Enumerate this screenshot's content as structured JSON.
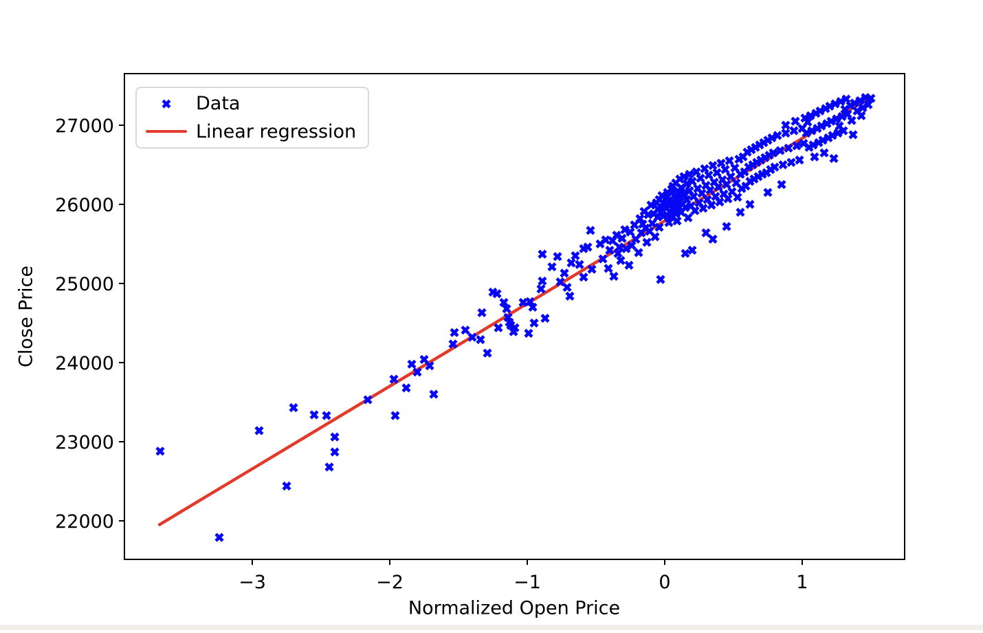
{
  "window": {
    "background": "#ffffff",
    "bottom_strip_color": "#f1ede9"
  },
  "chart_data": {
    "type": "scatter",
    "title": "",
    "xlabel": "Normalized Open Price",
    "ylabel": "Close Price",
    "xlim": [
      -3.93,
      1.745
    ],
    "ylim": [
      21513,
      27652
    ],
    "grid": false,
    "x_tick_values": [
      -3,
      -2,
      -1,
      0,
      1
    ],
    "x_tick_labels": [
      "−3",
      "−2",
      "−1",
      "0",
      "1"
    ],
    "y_tick_values": [
      22000,
      23000,
      24000,
      25000,
      26000,
      27000
    ],
    "y_tick_labels": [
      "22000",
      "23000",
      "24000",
      "25000",
      "26000",
      "27000"
    ],
    "marker_color": "#0707f5",
    "line_color": "#e23b2c",
    "axis_color": "#000000",
    "legend": {
      "position": "upper-left",
      "entries": [
        {
          "label": "Data",
          "type": "marker",
          "color": "#0707f5"
        },
        {
          "label": "Linear regression",
          "type": "line",
          "color": "#e23b2c"
        }
      ]
    },
    "series": [
      {
        "name": "Data",
        "type": "scatter"
      },
      {
        "name": "Linear regression",
        "type": "line"
      }
    ],
    "regression_line": {
      "x": [
        -3.675,
        1.49
      ],
      "y": [
        21952,
        27346
      ]
    },
    "points": [
      [
        -3.67,
        22880
      ],
      [
        -3.24,
        21790
      ],
      [
        -2.95,
        23140
      ],
      [
        -2.75,
        22440
      ],
      [
        -2.7,
        23430
      ],
      [
        -2.55,
        23340
      ],
      [
        -2.46,
        23330
      ],
      [
        -2.44,
        22680
      ],
      [
        -2.4,
        23060
      ],
      [
        -2.4,
        22870
      ],
      [
        -2.16,
        23530
      ],
      [
        -1.97,
        23790
      ],
      [
        -1.96,
        23330
      ],
      [
        -1.88,
        23680
      ],
      [
        -1.84,
        23980
      ],
      [
        -1.8,
        23880
      ],
      [
        -1.75,
        24040
      ],
      [
        -1.71,
        23960
      ],
      [
        -1.68,
        23600
      ],
      [
        -1.54,
        24235
      ],
      [
        -1.53,
        24380
      ],
      [
        -1.45,
        24410
      ],
      [
        -1.4,
        24320
      ],
      [
        -1.34,
        24290
      ],
      [
        -1.33,
        24630
      ],
      [
        -1.29,
        24120
      ],
      [
        -1.25,
        24890
      ],
      [
        -1.22,
        24870
      ],
      [
        -1.21,
        24440
      ],
      [
        -1.17,
        24760
      ],
      [
        -1.15,
        24680
      ],
      [
        -1.14,
        24570
      ],
      [
        -1.13,
        24510
      ],
      [
        -1.12,
        24470
      ],
      [
        -1.1,
        24390
      ],
      [
        -1.09,
        24440
      ],
      [
        -1.03,
        24760
      ],
      [
        -0.99,
        24370
      ],
      [
        -0.98,
        24770
      ],
      [
        -0.96,
        24700
      ],
      [
        -0.95,
        24500
      ],
      [
        -0.9,
        24930
      ],
      [
        -0.89,
        25370
      ],
      [
        -0.89,
        25030
      ],
      [
        -0.87,
        24560
      ],
      [
        -0.82,
        25210
      ],
      [
        -0.78,
        25340
      ],
      [
        -0.76,
        25020
      ],
      [
        -0.73,
        25130
      ],
      [
        -0.71,
        24950
      ],
      [
        -0.69,
        24840
      ],
      [
        -0.68,
        25260
      ],
      [
        -0.65,
        25350
      ],
      [
        -0.62,
        25240
      ],
      [
        -0.59,
        25440
      ],
      [
        -0.59,
        25080
      ],
      [
        -0.56,
        25460
      ],
      [
        -0.54,
        25670
      ],
      [
        -0.53,
        25180
      ],
      [
        -0.47,
        25500
      ],
      [
        -0.45,
        25310
      ],
      [
        -0.43,
        25550
      ],
      [
        -0.41,
        25190
      ],
      [
        -0.4,
        25420
      ],
      [
        -0.38,
        25540
      ],
      [
        -0.37,
        25090
      ],
      [
        -0.35,
        25610
      ],
      [
        -0.34,
        25380
      ],
      [
        -0.33,
        25460
      ],
      [
        -0.32,
        25290
      ],
      [
        -0.31,
        25570
      ],
      [
        -0.29,
        25680
      ],
      [
        -0.28,
        25440
      ],
      [
        -0.26,
        25230
      ],
      [
        -0.25,
        25650
      ],
      [
        -0.24,
        25480
      ],
      [
        -0.22,
        25740
      ],
      [
        -0.21,
        25560
      ],
      [
        -0.19,
        25390
      ],
      [
        -0.18,
        25820
      ],
      [
        -0.17,
        25640
      ],
      [
        -0.16,
        25750
      ],
      [
        -0.15,
        25910
      ],
      [
        -0.14,
        25700
      ],
      [
        -0.13,
        25520
      ],
      [
        -0.12,
        25870
      ],
      [
        -0.11,
        25660
      ],
      [
        -0.1,
        25990
      ],
      [
        -0.09,
        25760
      ],
      [
        -0.08,
        25880
      ],
      [
        -0.07,
        25590
      ],
      [
        -0.06,
        26020
      ],
      [
        -0.05,
        25940
      ],
      [
        -0.05,
        25840
      ],
      [
        -0.04,
        25710
      ],
      [
        -0.04,
        26060
      ],
      [
        -0.03,
        25900
      ],
      [
        -0.03,
        25050
      ],
      [
        -0.02,
        25960
      ],
      [
        -0.02,
        26110
      ],
      [
        -0.01,
        25850
      ],
      [
        -0.01,
        26010
      ],
      [
        0.01,
        25950
      ],
      [
        0.01,
        26080
      ],
      [
        0.02,
        25860
      ],
      [
        0.02,
        26150
      ],
      [
        0.03,
        25990
      ],
      [
        0.03,
        25770
      ],
      [
        0.04,
        26060
      ],
      [
        0.04,
        25910
      ],
      [
        0.05,
        26190
      ],
      [
        0.05,
        25840
      ],
      [
        0.06,
        26020
      ],
      [
        0.06,
        26230
      ],
      [
        0.07,
        25950
      ],
      [
        0.07,
        26110
      ],
      [
        0.08,
        25880
      ],
      [
        0.08,
        26270
      ],
      [
        0.09,
        26030
      ],
      [
        0.09,
        25790
      ],
      [
        0.1,
        26160
      ],
      [
        0.1,
        25970
      ],
      [
        0.11,
        26320
      ],
      [
        0.11,
        26090
      ],
      [
        0.12,
        25900
      ],
      [
        0.12,
        26210
      ],
      [
        0.13,
        26000
      ],
      [
        0.14,
        26350
      ],
      [
        0.14,
        26130
      ],
      [
        0.15,
        25960
      ],
      [
        0.15,
        25380
      ],
      [
        0.16,
        26260
      ],
      [
        0.16,
        26060
      ],
      [
        0.17,
        25830
      ],
      [
        0.18,
        26380
      ],
      [
        0.18,
        26170
      ],
      [
        0.19,
        25980
      ],
      [
        0.2,
        26290
      ],
      [
        0.2,
        25420
      ],
      [
        0.21,
        26100
      ],
      [
        0.22,
        25920
      ],
      [
        0.23,
        26410
      ],
      [
        0.24,
        26200
      ],
      [
        0.25,
        26020
      ],
      [
        0.26,
        26330
      ],
      [
        0.27,
        26140
      ],
      [
        0.28,
        25950
      ],
      [
        0.29,
        26450
      ],
      [
        0.3,
        26240
      ],
      [
        0.3,
        25640
      ],
      [
        0.31,
        26060
      ],
      [
        0.32,
        26370
      ],
      [
        0.33,
        26180
      ],
      [
        0.34,
        25990
      ],
      [
        0.35,
        26490
      ],
      [
        0.35,
        25560
      ],
      [
        0.36,
        26280
      ],
      [
        0.37,
        26100
      ],
      [
        0.38,
        26400
      ],
      [
        0.39,
        26220
      ],
      [
        0.4,
        26030
      ],
      [
        0.41,
        26520
      ],
      [
        0.42,
        26310
      ],
      [
        0.43,
        26130
      ],
      [
        0.44,
        26440
      ],
      [
        0.45,
        26250
      ],
      [
        0.45,
        25720
      ],
      [
        0.46,
        26070
      ],
      [
        0.47,
        26550
      ],
      [
        0.48,
        26350
      ],
      [
        0.49,
        26160
      ],
      [
        0.51,
        26460
      ],
      [
        0.52,
        26270
      ],
      [
        0.53,
        26090
      ],
      [
        0.54,
        26570
      ],
      [
        0.55,
        26380
      ],
      [
        0.55,
        25900
      ],
      [
        0.56,
        26200
      ],
      [
        0.57,
        26600
      ],
      [
        0.58,
        26410
      ],
      [
        0.59,
        26230
      ],
      [
        0.6,
        26660
      ],
      [
        0.61,
        26470
      ],
      [
        0.62,
        26290
      ],
      [
        0.62,
        26000
      ],
      [
        0.63,
        26690
      ],
      [
        0.64,
        26500
      ],
      [
        0.65,
        26320
      ],
      [
        0.66,
        26720
      ],
      [
        0.67,
        26530
      ],
      [
        0.68,
        26350
      ],
      [
        0.69,
        26750
      ],
      [
        0.7,
        26560
      ],
      [
        0.71,
        26380
      ],
      [
        0.72,
        26780
      ],
      [
        0.73,
        26590
      ],
      [
        0.74,
        26400
      ],
      [
        0.75,
        26810
      ],
      [
        0.75,
        26150
      ],
      [
        0.76,
        26620
      ],
      [
        0.77,
        26440
      ],
      [
        0.78,
        26840
      ],
      [
        0.79,
        26650
      ],
      [
        0.8,
        26470
      ],
      [
        0.82,
        26870
      ],
      [
        0.84,
        26680
      ],
      [
        0.85,
        26250
      ],
      [
        0.86,
        26500
      ],
      [
        0.88,
        26900
      ],
      [
        0.88,
        27000
      ],
      [
        0.9,
        26710
      ],
      [
        0.92,
        26530
      ],
      [
        0.94,
        26930
      ],
      [
        0.95,
        27050
      ],
      [
        0.96,
        26740
      ],
      [
        0.98,
        26560
      ],
      [
        1.0,
        26960
      ],
      [
        1.01,
        26770
      ],
      [
        1.02,
        27090
      ],
      [
        1.03,
        26900
      ],
      [
        1.04,
        27040
      ],
      [
        1.05,
        26720
      ],
      [
        1.06,
        27120
      ],
      [
        1.07,
        26930
      ],
      [
        1.08,
        26750
      ],
      [
        1.09,
        26600
      ],
      [
        1.1,
        27150
      ],
      [
        1.11,
        26960
      ],
      [
        1.12,
        26780
      ],
      [
        1.13,
        27180
      ],
      [
        1.14,
        26990
      ],
      [
        1.15,
        26810
      ],
      [
        1.16,
        26650
      ],
      [
        1.17,
        27210
      ],
      [
        1.18,
        27020
      ],
      [
        1.19,
        26840
      ],
      [
        1.2,
        27240
      ],
      [
        1.21,
        27050
      ],
      [
        1.22,
        26870
      ],
      [
        1.23,
        26580
      ],
      [
        1.24,
        27270
      ],
      [
        1.25,
        27080
      ],
      [
        1.26,
        26900
      ],
      [
        1.27,
        26990
      ],
      [
        1.28,
        27300
      ],
      [
        1.29,
        27110
      ],
      [
        1.3,
        26930
      ],
      [
        1.31,
        27200
      ],
      [
        1.32,
        27330
      ],
      [
        1.33,
        27140
      ],
      [
        1.35,
        27250
      ],
      [
        1.36,
        27060
      ],
      [
        1.37,
        26880
      ],
      [
        1.38,
        27280
      ],
      [
        1.4,
        27180
      ],
      [
        1.42,
        27310
      ],
      [
        1.43,
        27120
      ],
      [
        1.44,
        27220
      ],
      [
        1.46,
        27350
      ],
      [
        1.48,
        27260
      ],
      [
        1.5,
        27340
      ]
    ]
  }
}
